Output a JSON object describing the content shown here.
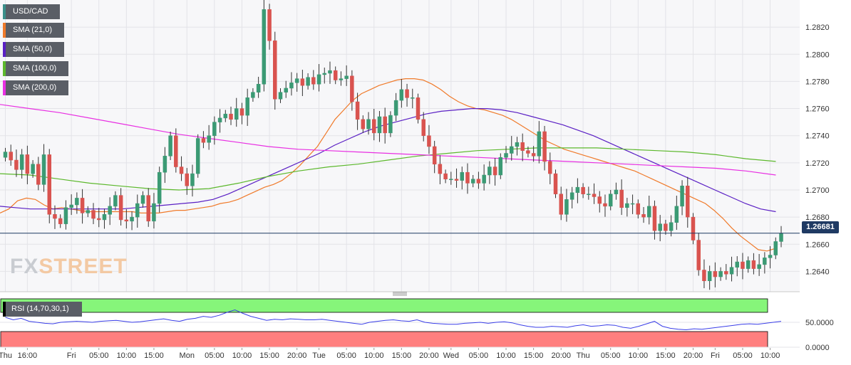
{
  "chart_data": {
    "type": "candlestick",
    "title": "USD/CAD",
    "price_axis": {
      "ylim": [
        1.2625,
        1.284
      ],
      "ticks": [
        "1.2640",
        "1.2660",
        "1.2680",
        "1.2700",
        "1.2720",
        "1.2740",
        "1.2760",
        "1.2780",
        "1.2800",
        "1.2820"
      ],
      "current_price_label": "1.26681",
      "current_price": 1.26681
    },
    "x_ticks": [
      {
        "label": "Thu",
        "idx": 0
      },
      {
        "label": "16:00",
        "idx": 4
      },
      {
        "label": "Fri",
        "idx": 12
      },
      {
        "label": "05:00",
        "idx": 17
      },
      {
        "label": "10:00",
        "idx": 22
      },
      {
        "label": "15:00",
        "idx": 27
      },
      {
        "label": "Mon",
        "idx": 33
      },
      {
        "label": "05:00",
        "idx": 38
      },
      {
        "label": "10:00",
        "idx": 43
      },
      {
        "label": "15:00",
        "idx": 48
      },
      {
        "label": "20:00",
        "idx": 53
      },
      {
        "label": "Tue",
        "idx": 57
      },
      {
        "label": "05:00",
        "idx": 62
      },
      {
        "label": "10:00",
        "idx": 67
      },
      {
        "label": "15:00",
        "idx": 72
      },
      {
        "label": "20:00",
        "idx": 77
      },
      {
        "label": "Wed",
        "idx": 81
      },
      {
        "label": "05:00",
        "idx": 86
      },
      {
        "label": "10:00",
        "idx": 91
      },
      {
        "label": "15:00",
        "idx": 96
      },
      {
        "label": "20:00",
        "idx": 101
      },
      {
        "label": "Thu",
        "idx": 105
      },
      {
        "label": "05:00",
        "idx": 110
      },
      {
        "label": "10:00",
        "idx": 115
      },
      {
        "label": "15:00",
        "idx": 120
      },
      {
        "label": "20:00",
        "idx": 125
      },
      {
        "label": "Fri",
        "idx": 129
      },
      {
        "label": "05:00",
        "idx": 134
      },
      {
        "label": "10:00",
        "idx": 139
      }
    ],
    "closes": [
      1.2728,
      1.2722,
      1.2715,
      1.2726,
      1.2712,
      1.2719,
      1.2704,
      1.2726,
      1.2682,
      1.2679,
      1.2675,
      1.2687,
      1.2689,
      1.2694,
      1.2683,
      1.2685,
      1.2679,
      1.2678,
      1.2682,
      1.2688,
      1.2696,
      1.2678,
      1.2677,
      1.268,
      1.269,
      1.2696,
      1.2677,
      1.269,
      1.2713,
      1.2725,
      1.274,
      1.2717,
      1.2712,
      1.2703,
      1.2712,
      1.2738,
      1.2735,
      1.274,
      1.275,
      1.2753,
      1.2756,
      1.2752,
      1.276,
      1.2755,
      1.2768,
      1.2772,
      1.2778,
      1.2833,
      1.281,
      1.2767,
      1.2772,
      1.2775,
      1.2779,
      1.2782,
      1.2777,
      1.2783,
      1.2778,
      1.2785,
      1.2786,
      1.2788,
      1.2781,
      1.2782,
      1.2784,
      1.2765,
      1.2752,
      1.2745,
      1.2752,
      1.2742,
      1.2754,
      1.2742,
      1.2755,
      1.2766,
      1.2774,
      1.2768,
      1.2768,
      1.2752,
      1.274,
      1.2732,
      1.2719,
      1.2712,
      1.2708,
      1.2708,
      1.2707,
      1.2713,
      1.2705,
      1.2708,
      1.2705,
      1.2711,
      1.2717,
      1.2711,
      1.2724,
      1.2727,
      1.2732,
      1.2735,
      1.2729,
      1.2727,
      1.2725,
      1.2743,
      1.2721,
      1.2712,
      1.2697,
      1.2682,
      1.2693,
      1.2698,
      1.2702,
      1.2697,
      1.2697,
      1.2695,
      1.269,
      1.2688,
      1.2697,
      1.27,
      1.2687,
      1.269,
      1.269,
      1.2682,
      1.268,
      1.2688,
      1.267,
      1.2675,
      1.267,
      1.2676,
      1.2688,
      1.2703,
      1.268,
      1.2663,
      1.2641,
      1.2633,
      1.264,
      1.2636,
      1.264,
      1.2638,
      1.2643,
      1.2647,
      1.2642,
      1.2648,
      1.2642,
      1.2645,
      1.265,
      1.2652,
      1.2662,
      1.2668
    ],
    "series": [
      {
        "name": "SMA (21,0)",
        "color": "#f07a2a",
        "values": [
          1.2683,
          1.2686,
          1.2692,
          1.2694,
          1.2693,
          1.2689,
          1.2686,
          1.2687,
          1.2686,
          1.2685,
          1.2684,
          1.2684,
          1.2684,
          1.2684,
          1.2684,
          1.2684,
          1.2683,
          1.2683,
          1.2683,
          1.2684,
          1.2685,
          1.2685,
          1.2686,
          1.2687,
          1.2688,
          1.269,
          1.2691,
          1.2693,
          1.2696,
          1.2699,
          1.2702,
          1.2704,
          1.2707,
          1.2712,
          1.2718,
          1.2725,
          1.2732,
          1.2742,
          1.2752,
          1.2759,
          1.2766,
          1.2771,
          1.2774,
          1.2777,
          1.2779,
          1.2781,
          1.2782,
          1.2782,
          1.2781,
          1.2778,
          1.2774,
          1.2769,
          1.2765,
          1.2762,
          1.276,
          1.2759,
          1.2757,
          1.2755,
          1.2752,
          1.2748,
          1.2744,
          1.274,
          1.2736,
          1.2733,
          1.273,
          1.2728,
          1.2726,
          1.2724,
          1.2722,
          1.272,
          1.2718,
          1.2716,
          1.2714,
          1.2711,
          1.2708,
          1.2705,
          1.2702,
          1.2699,
          1.2696,
          1.2693,
          1.269,
          1.2685,
          1.2679,
          1.2672,
          1.2666,
          1.2661,
          1.2656,
          1.2655,
          1.2657
        ]
      },
      {
        "name": "SMA (50,0)",
        "color": "#5a1fc4",
        "values": [
          1.2688,
          1.2687,
          1.2686,
          1.2686,
          1.2686,
          1.2686,
          1.2686,
          1.2686,
          1.2686,
          1.2687,
          1.2688,
          1.2689,
          1.269,
          1.2691,
          1.2693,
          1.2697,
          1.2702,
          1.2707,
          1.2712,
          1.2717,
          1.2722,
          1.2727,
          1.2733,
          1.2738,
          1.2743,
          1.2747,
          1.275,
          1.2753,
          1.2756,
          1.2758,
          1.2759,
          1.276,
          1.276,
          1.2759,
          1.2757,
          1.2754,
          1.2751,
          1.2748,
          1.2744,
          1.274,
          1.2735,
          1.273,
          1.2725,
          1.272,
          1.2715,
          1.271,
          1.2705,
          1.27,
          1.2695,
          1.269,
          1.2686,
          1.2684
        ]
      },
      {
        "name": "SMA (100,0)",
        "color": "#5cb82c",
        "values": [
          1.2712,
          1.2711,
          1.2708,
          1.2705,
          1.2703,
          1.2701,
          1.27,
          1.2701,
          1.2705,
          1.271,
          1.2714,
          1.2717,
          1.2719,
          1.2722,
          1.2725,
          1.2727,
          1.2729,
          1.273,
          1.2731,
          1.2731,
          1.2731,
          1.273,
          1.2729,
          1.2728,
          1.2726,
          1.2723,
          1.2721
        ]
      },
      {
        "name": "SMA (200,0)",
        "color": "#e82fe2",
        "values": [
          1.2763,
          1.276,
          1.2757,
          1.2753,
          1.2749,
          1.2745,
          1.2741,
          1.2738,
          1.2735,
          1.2732,
          1.273,
          1.2729,
          1.2728,
          1.2727,
          1.2726,
          1.2725,
          1.2724,
          1.2723,
          1.2722,
          1.2721,
          1.272,
          1.2719,
          1.2718,
          1.2717,
          1.2716,
          1.2714,
          1.2711
        ]
      }
    ],
    "rsi": {
      "label": "RSI (14,70,30,1)",
      "ylim": [
        0,
        100
      ],
      "ticks": [
        "0.0000",
        "50.0000"
      ],
      "overbought": 70,
      "oversold": 30,
      "values": [
        60,
        55,
        58,
        52,
        50,
        48,
        47,
        50,
        51,
        52,
        51,
        50,
        52,
        53,
        54,
        52,
        50,
        51,
        53,
        55,
        57,
        54,
        52,
        56,
        58,
        62,
        60,
        64,
        70,
        75,
        68,
        62,
        58,
        54,
        56,
        55,
        57,
        56,
        55,
        55,
        56,
        54,
        52,
        50,
        48,
        46,
        50,
        52,
        54,
        55,
        53,
        52,
        55,
        50,
        48,
        47,
        46,
        46,
        48,
        49,
        50,
        48,
        50,
        51,
        49,
        45,
        42,
        40,
        40,
        42,
        41,
        40,
        43,
        45,
        42,
        43,
        45,
        44,
        40,
        38,
        42,
        47,
        52,
        42,
        38,
        36,
        35,
        37,
        36,
        38,
        40,
        42,
        44,
        46,
        47,
        46,
        48,
        50,
        52
      ]
    }
  },
  "legend": [
    "USD/CAD",
    "SMA (21,0)",
    "SMA (50,0)",
    "SMA (100,0)",
    "SMA (200,0)"
  ],
  "legend_colors": [
    "#3a8f8a",
    "#f07a2a",
    "#5a1fc4",
    "#5cb82c",
    "#e82fe2"
  ],
  "watermark": {
    "part1": "FX",
    "part2": "STREET"
  },
  "colors": {
    "bull": "#3b9a74",
    "bear": "#d9534f",
    "price_line": "#1f3a63",
    "overbought_zone": "#86f57a",
    "oversold_zone": "#ff7f7f"
  }
}
